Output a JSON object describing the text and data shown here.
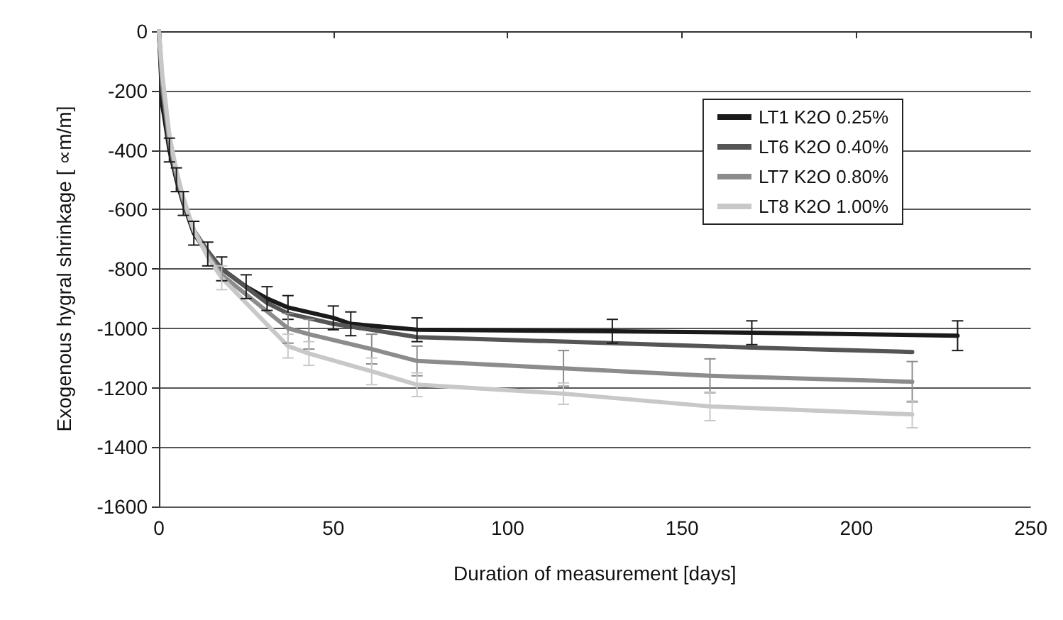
{
  "chart_data": {
    "type": "line",
    "xlabel": "Duration of measurement [days]",
    "ylabel": "Exogenous hygral shrinkage [ ∝m/m]",
    "xlim": [
      0,
      250
    ],
    "xticks": [
      0,
      50,
      100,
      150,
      200,
      250
    ],
    "ylim": [
      -1600,
      0
    ],
    "yticks": [
      -1600,
      -1400,
      -1200,
      -1000,
      -800,
      -600,
      -400,
      -200,
      0
    ],
    "grid": "y",
    "legend": "top right",
    "marker": "none",
    "line_style": "solid",
    "series": [
      {
        "name": "LT1 K2O 0.25%",
        "color": "#1a1a1a",
        "x": [
          0,
          1,
          3,
          5,
          7,
          10,
          14,
          18,
          25,
          31,
          37,
          50,
          55,
          74,
          130,
          170,
          229
        ],
        "values": [
          0,
          -250,
          -400,
          -500,
          -580,
          -680,
          -750,
          -800,
          -860,
          -900,
          -930,
          -965,
          -985,
          -1005,
          -1010,
          -1015,
          -1025
        ],
        "errors": [
          null,
          null,
          40,
          40,
          40,
          40,
          40,
          40,
          40,
          40,
          40,
          40,
          40,
          40,
          40,
          40,
          50
        ]
      },
      {
        "name": "LT6 K2O 0.40%",
        "color": "#555555",
        "x": [
          0,
          1,
          3,
          5,
          7,
          10,
          14,
          18,
          31,
          37,
          50,
          74,
          116,
          170,
          216
        ],
        "values": [
          0,
          -200,
          -380,
          -490,
          -570,
          -670,
          -740,
          -800,
          -915,
          -950,
          -985,
          -1030,
          -1045,
          -1065,
          -1080
        ]
      },
      {
        "name": "LT7 K2O 0.80%",
        "color": "#8c8c8c",
        "x": [
          0,
          1,
          3,
          5,
          7,
          10,
          14,
          18,
          37,
          43,
          61,
          74,
          116,
          158,
          216
        ],
        "values": [
          0,
          -180,
          -370,
          -480,
          -570,
          -670,
          -750,
          -820,
          -1000,
          -1020,
          -1070,
          -1110,
          -1135,
          -1160,
          -1180
        ],
        "errors": [
          null,
          null,
          null,
          null,
          null,
          null,
          null,
          null,
          50,
          50,
          50,
          50,
          60,
          57,
          68
        ]
      },
      {
        "name": "LT8 K2O 1.00%",
        "color": "#c8c8c8",
        "x": [
          0,
          1,
          3,
          5,
          7,
          10,
          14,
          18,
          37,
          43,
          61,
          74,
          116,
          158,
          216
        ],
        "values": [
          0,
          -150,
          -350,
          -470,
          -560,
          -670,
          -760,
          -830,
          -1060,
          -1085,
          -1145,
          -1190,
          -1220,
          -1263,
          -1290
        ],
        "errors": [
          null,
          null,
          null,
          null,
          null,
          null,
          null,
          40,
          40,
          40,
          45,
          40,
          36,
          48,
          45
        ]
      }
    ]
  }
}
